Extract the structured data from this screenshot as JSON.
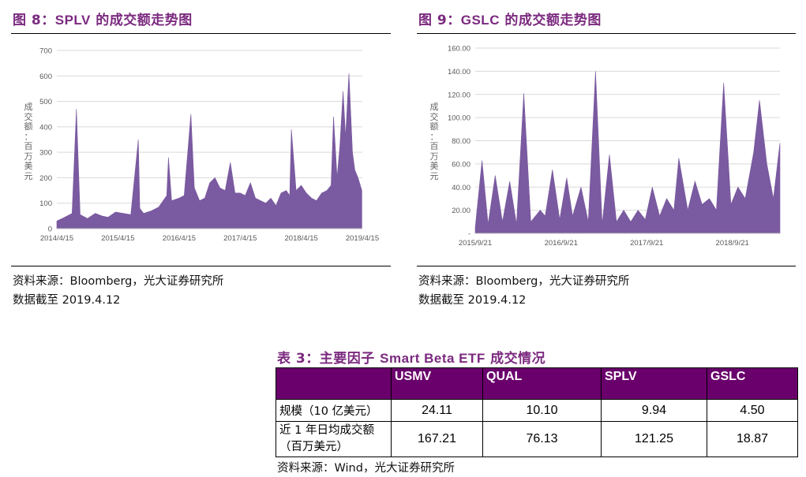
{
  "fig8": {
    "title_prefix": "图 8：",
    "title_name": "SPLV",
    "title_suffix": " 的成交额走势图",
    "source": "资料来源：Bloomberg，光大证券研究所",
    "cutoff": "数据截至 2019.4.12"
  },
  "fig9": {
    "title_prefix": "图 9：",
    "title_name": "GSLC",
    "title_suffix": " 的成交额走势图",
    "source": "资料来源：Bloomberg，光大证券研究所",
    "cutoff": "数据截至 2019.4.12"
  },
  "table3": {
    "title_prefix": "表 3：",
    "title_mid": "主要因子 ",
    "title_latin": "Smart Beta ETF",
    "title_suffix": " 成交情况",
    "headers": [
      "",
      "USMV",
      "QUAL",
      "SPLV",
      "GSLC"
    ],
    "rows": [
      {
        "label": "规模（10 亿美元）",
        "values": [
          "24.11",
          "10.10",
          "9.94",
          "4.50"
        ]
      },
      {
        "label_line1": "近 1 年日均成交额",
        "label_line2": "（百万美元）",
        "values": [
          "167.21",
          "76.13",
          "121.25",
          "18.87"
        ]
      }
    ],
    "source": "资料来源：Wind，光大证券研究所"
  },
  "chart_data": [
    {
      "type": "area",
      "ylabel": "成交额：百万美元",
      "ylim": [
        0,
        700
      ],
      "y_ticks": [
        "0",
        "100",
        "200",
        "300",
        "400",
        "500",
        "600",
        "700"
      ],
      "x_ticks": [
        "2014/4/15",
        "2015/4/15",
        "2016/4/15",
        "2017/4/15",
        "2018/4/15",
        "2019/4/15"
      ],
      "grid": true,
      "color": "#7a5aa0",
      "series": [
        {
          "x": [
            "2014/4/15",
            "2014/6/1",
            "2014/7/15",
            "2014/8/10",
            "2014/9/1",
            "2014/10/15",
            "2014/12/1",
            "2015/1/10",
            "2015/2/15",
            "2015/4/1",
            "2015/5/15",
            "2015/7/1",
            "2015/8/15",
            "2015/8/24",
            "2015/9/15",
            "2015/11/1",
            "2015/12/15",
            "2016/2/1",
            "2016/2/11",
            "2016/3/1",
            "2016/4/15",
            "2016/5/15",
            "2016/6/24",
            "2016/7/15",
            "2016/8/15",
            "2016/9/15",
            "2016/10/15",
            "2016/11/15",
            "2016/12/15",
            "2017/1/15",
            "2017/2/15",
            "2017/3/15",
            "2017/4/15",
            "2017/5/15",
            "2017/6/15",
            "2017/7/15",
            "2017/8/15",
            "2017/9/15",
            "2017/10/15",
            "2017/11/15",
            "2017/12/15",
            "2018/1/15",
            "2018/2/5",
            "2018/2/15",
            "2018/3/15",
            "2018/4/15",
            "2018/5/15",
            "2018/6/15",
            "2018/7/15",
            "2018/8/15",
            "2018/9/15",
            "2018/10/10",
            "2018/10/25",
            "2018/11/15",
            "2018/12/1",
            "2018/12/21",
            "2019/1/5",
            "2019/1/25",
            "2019/2/15",
            "2019/3/1",
            "2019/3/20",
            "2019/4/12"
          ],
          "values": [
            30,
            45,
            60,
            470,
            55,
            40,
            60,
            50,
            45,
            65,
            60,
            55,
            350,
            80,
            60,
            70,
            85,
            130,
            280,
            110,
            120,
            130,
            450,
            160,
            110,
            120,
            180,
            200,
            160,
            150,
            260,
            140,
            140,
            130,
            180,
            120,
            110,
            100,
            120,
            90,
            140,
            150,
            130,
            390,
            150,
            170,
            140,
            120,
            110,
            140,
            150,
            170,
            440,
            200,
            320,
            540,
            360,
            610,
            300,
            230,
            200,
            150
          ]
        }
      ]
    },
    {
      "type": "area",
      "ylabel": "成交额：百万美元",
      "ylim": [
        0,
        160
      ],
      "y_ticks": [
        "-",
        "20.00",
        "40.00",
        "60.00",
        "80.00",
        "100.00",
        "120.00",
        "140.00",
        "160.00"
      ],
      "x_ticks": [
        "2015/9/21",
        "2016/9/21",
        "2017/9/21",
        "2018/9/21"
      ],
      "grid": true,
      "color": "#7a5aa0",
      "series": [
        {
          "x": [
            "2015/9/21",
            "2015/10/20",
            "2015/11/15",
            "2015/12/15",
            "2016/1/15",
            "2016/2/15",
            "2016/3/15",
            "2016/4/15",
            "2016/5/15",
            "2016/6/24",
            "2016/7/15",
            "2016/8/15",
            "2016/9/15",
            "2016/10/15",
            "2016/11/9",
            "2016/12/15",
            "2017/1/15",
            "2017/2/15",
            "2017/3/15",
            "2017/4/15",
            "2017/5/15",
            "2017/6/15",
            "2017/7/15",
            "2017/8/15",
            "2017/9/15",
            "2017/10/15",
            "2017/11/15",
            "2017/12/15",
            "2018/1/15",
            "2018/2/5",
            "2018/3/15",
            "2018/4/15",
            "2018/5/15",
            "2018/6/15",
            "2018/7/15",
            "2018/8/15",
            "2018/9/15",
            "2018/10/15",
            "2018/11/15",
            "2018/12/21",
            "2019/1/15",
            "2019/2/15",
            "2019/3/15",
            "2019/4/12"
          ],
          "values": [
            5,
            63,
            8,
            50,
            10,
            45,
            8,
            121,
            10,
            20,
            15,
            55,
            12,
            48,
            15,
            40,
            10,
            140,
            8,
            68,
            10,
            20,
            10,
            20,
            12,
            40,
            15,
            30,
            20,
            65,
            20,
            45,
            25,
            30,
            20,
            130,
            25,
            40,
            30,
            70,
            115,
            60,
            30,
            78
          ]
        }
      ]
    }
  ]
}
